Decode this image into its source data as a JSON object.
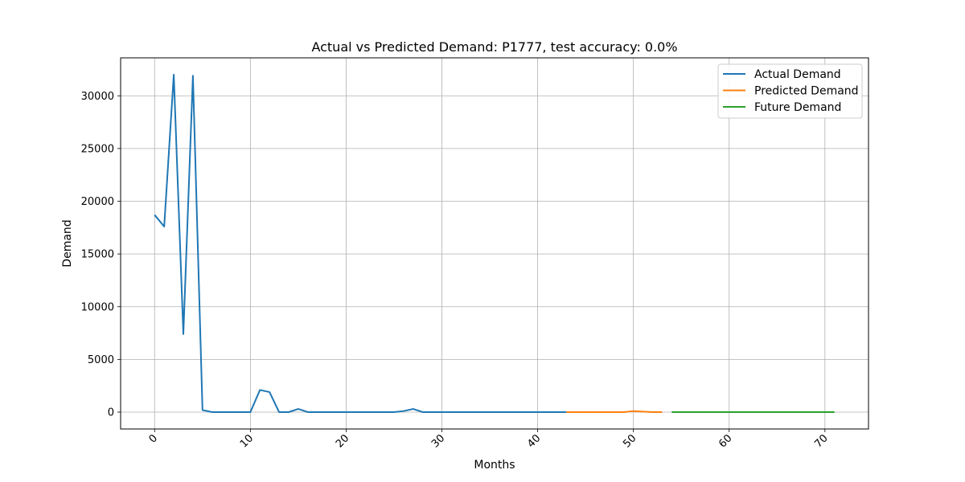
{
  "chart_data": {
    "type": "line",
    "title": "Actual vs Predicted Demand: P1777, test accuracy: 0.0%",
    "xlabel": "Months",
    "ylabel": "Demand",
    "xlim": [
      -3.55,
      74.55
    ],
    "ylim": [
      -1600,
      33600
    ],
    "xticks": [
      0,
      10,
      20,
      30,
      40,
      50,
      60,
      70
    ],
    "yticks": [
      0,
      5000,
      10000,
      15000,
      20000,
      25000,
      30000
    ],
    "grid": true,
    "legend_position": "top-right",
    "series": [
      {
        "name": "Actual Demand",
        "color": "#1f77b4",
        "x": [
          0,
          1,
          2,
          3,
          4,
          5,
          6,
          7,
          8,
          9,
          10,
          11,
          12,
          13,
          14,
          15,
          16,
          17,
          18,
          19,
          20,
          21,
          22,
          23,
          24,
          25,
          26,
          27,
          28,
          29,
          30,
          31,
          32,
          33,
          34,
          35,
          36,
          37,
          38,
          39,
          40,
          41,
          42,
          43
        ],
        "y": [
          18700,
          17600,
          32000,
          7400,
          31900,
          200,
          0,
          0,
          0,
          0,
          0,
          2100,
          1900,
          0,
          0,
          300,
          0,
          0,
          0,
          0,
          0,
          0,
          0,
          0,
          0,
          0,
          100,
          300,
          0,
          0,
          0,
          0,
          0,
          0,
          0,
          0,
          0,
          0,
          0,
          0,
          0,
          0,
          0,
          0
        ]
      },
      {
        "name": "Predicted Demand",
        "color": "#ff7f0e",
        "x": [
          43,
          44,
          45,
          46,
          47,
          48,
          49,
          50,
          51,
          52,
          53
        ],
        "y": [
          0,
          0,
          0,
          0,
          0,
          0,
          0,
          100,
          50,
          0,
          0
        ]
      },
      {
        "name": "Future Demand",
        "color": "#2ca02c",
        "x": [
          54,
          55,
          56,
          57,
          58,
          59,
          60,
          61,
          62,
          63,
          64,
          65,
          66,
          67,
          68,
          69,
          70,
          71
        ],
        "y": [
          0,
          0,
          0,
          0,
          0,
          0,
          0,
          0,
          0,
          0,
          0,
          0,
          0,
          0,
          0,
          0,
          0,
          0
        ]
      }
    ]
  }
}
